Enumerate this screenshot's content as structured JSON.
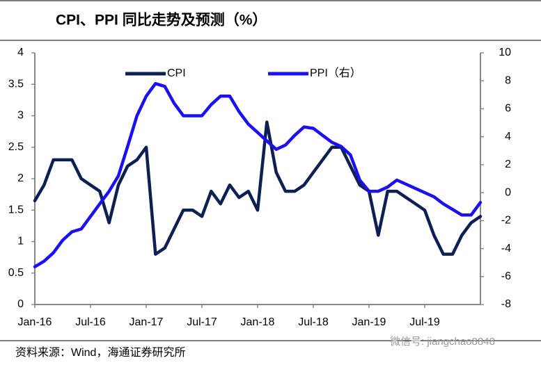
{
  "chart_data": {
    "type": "line",
    "title": "CPI、PPI 同比走势及预测（%）",
    "source": "资料来源：Wind，海通证券研究所",
    "watermark": "微信号: jiangchao8848",
    "categories": [
      "Jan-16",
      null,
      null,
      null,
      null,
      null,
      "Jul-16",
      null,
      null,
      null,
      null,
      null,
      "Jan-17",
      null,
      null,
      null,
      null,
      null,
      "Jul-17",
      null,
      null,
      null,
      null,
      null,
      "Jan-18",
      null,
      null,
      null,
      null,
      null,
      "Jul-18",
      null,
      null,
      null,
      null,
      null,
      "Jan-19",
      null,
      null,
      null,
      null,
      null,
      "Jul-19",
      null,
      null,
      null,
      null,
      null,
      null
    ],
    "series": [
      {
        "name": "CPI",
        "color": "#0e1f52",
        "values": [
          1.65,
          1.9,
          2.3,
          2.3,
          2.3,
          2.0,
          1.9,
          1.8,
          1.3,
          1.9,
          2.2,
          2.3,
          2.5,
          0.8,
          0.9,
          1.2,
          1.5,
          1.5,
          1.4,
          1.8,
          1.6,
          1.9,
          1.7,
          1.8,
          1.5,
          2.9,
          2.1,
          1.8,
          1.8,
          1.9,
          2.1,
          2.3,
          2.5,
          2.5,
          2.2,
          1.9,
          1.8,
          1.1,
          1.8,
          1.8,
          1.7,
          1.6,
          1.5,
          1.1,
          0.8,
          0.8,
          1.1,
          1.3,
          1.4
        ]
      },
      {
        "name": "PPI（右）",
        "color": "#1a10f0",
        "axis": "y2",
        "values": [
          -5.3,
          -4.9,
          -4.3,
          -3.4,
          -2.8,
          -2.6,
          -1.7,
          -0.8,
          0.1,
          1.2,
          3.3,
          5.5,
          6.9,
          7.8,
          7.6,
          6.4,
          5.5,
          5.5,
          5.5,
          6.3,
          6.9,
          6.9,
          5.8,
          4.9,
          4.3,
          3.7,
          3.1,
          3.4,
          4.1,
          4.7,
          4.6,
          4.1,
          3.6,
          3.3,
          2.7,
          0.9,
          0.1,
          0.1,
          0.4,
          0.9,
          0.6,
          0.3,
          0.0,
          -0.3,
          -0.8,
          -1.2,
          -1.6,
          -1.6,
          -0.7
        ]
      }
    ],
    "ylim": [
      0,
      4
    ],
    "yticks": [
      0,
      0.5,
      1,
      1.5,
      2,
      2.5,
      3,
      3.5,
      4
    ],
    "y2lim": [
      -8,
      10
    ],
    "y2ticks": [
      -8,
      -6,
      -4,
      -2,
      0,
      2,
      4,
      6,
      8,
      10
    ]
  }
}
